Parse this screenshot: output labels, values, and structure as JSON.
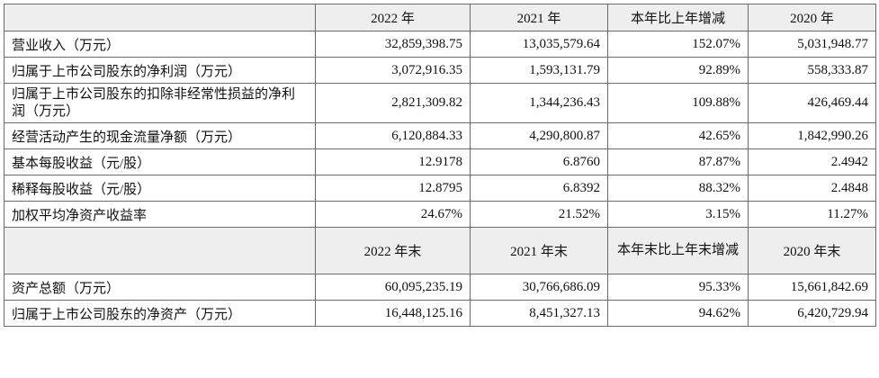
{
  "table1": {
    "headers": [
      "",
      "2022 年",
      "2021 年",
      "本年比上年增减",
      "2020 年"
    ],
    "rows": [
      {
        "label": "营业收入（万元）",
        "cells": [
          "32,859,398.75",
          "13,035,579.64",
          "152.07%",
          "5,031,948.77"
        ]
      },
      {
        "label": "归属于上市公司股东的净利润（万元）",
        "cells": [
          "3,072,916.35",
          "1,593,131.79",
          "92.89%",
          "558,333.87"
        ]
      },
      {
        "label": "归属于上市公司股东的扣除非经常性损益的净利润（万元）",
        "cells": [
          "2,821,309.82",
          "1,344,236.43",
          "109.88%",
          "426,469.44"
        ]
      },
      {
        "label": "经营活动产生的现金流量净额（万元）",
        "cells": [
          "6,120,884.33",
          "4,290,800.87",
          "42.65%",
          "1,842,990.26"
        ]
      },
      {
        "label": "基本每股收益（元/股）",
        "cells": [
          "12.9178",
          "6.8760",
          "87.87%",
          "2.4942"
        ]
      },
      {
        "label": "稀释每股收益（元/股）",
        "cells": [
          "12.8795",
          "6.8392",
          "88.32%",
          "2.4848"
        ]
      },
      {
        "label": "加权平均净资产收益率",
        "cells": [
          "24.67%",
          "21.52%",
          "3.15%",
          "11.27%"
        ]
      }
    ]
  },
  "table2": {
    "headers": [
      "",
      "2022 年末",
      "2021 年末",
      "本年末比上年末增减",
      "2020 年末"
    ],
    "rows": [
      {
        "label": "资产总额（万元）",
        "cells": [
          "60,095,235.19",
          "30,766,686.09",
          "95.33%",
          "15,661,842.69"
        ]
      },
      {
        "label": "归属于上市公司股东的净资产（万元）",
        "cells": [
          "16,448,125.16",
          "8,451,327.13",
          "94.62%",
          "6,420,729.94"
        ]
      }
    ]
  }
}
